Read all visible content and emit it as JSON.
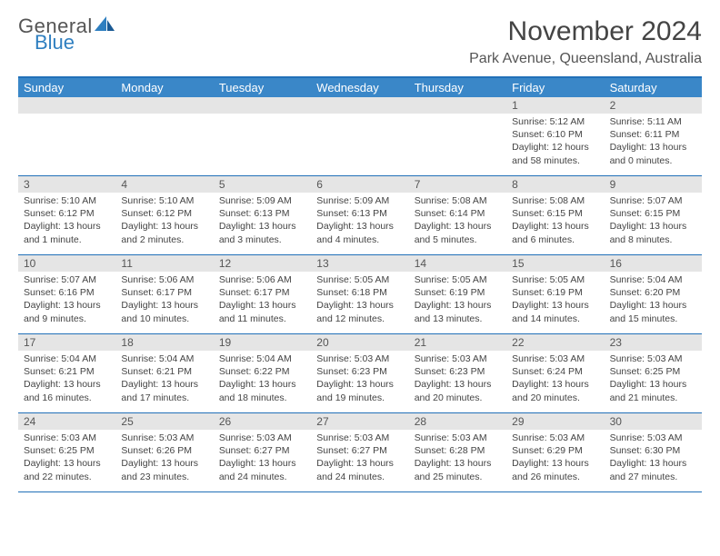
{
  "logo": {
    "general": "General",
    "blue": "Blue"
  },
  "title": "November 2024",
  "location": "Park Avenue, Queensland, Australia",
  "colors": {
    "header_bg": "#3a87c8",
    "border": "#2170b8",
    "daynum_bg": "#e5e5e5",
    "logo_blue": "#2f7fc0"
  },
  "day_names": [
    "Sunday",
    "Monday",
    "Tuesday",
    "Wednesday",
    "Thursday",
    "Friday",
    "Saturday"
  ],
  "weeks": [
    [
      {
        "n": "",
        "sunrise": "",
        "sunset": "",
        "daylight": ""
      },
      {
        "n": "",
        "sunrise": "",
        "sunset": "",
        "daylight": ""
      },
      {
        "n": "",
        "sunrise": "",
        "sunset": "",
        "daylight": ""
      },
      {
        "n": "",
        "sunrise": "",
        "sunset": "",
        "daylight": ""
      },
      {
        "n": "",
        "sunrise": "",
        "sunset": "",
        "daylight": ""
      },
      {
        "n": "1",
        "sunrise": "Sunrise: 5:12 AM",
        "sunset": "Sunset: 6:10 PM",
        "daylight": "Daylight: 12 hours and 58 minutes."
      },
      {
        "n": "2",
        "sunrise": "Sunrise: 5:11 AM",
        "sunset": "Sunset: 6:11 PM",
        "daylight": "Daylight: 13 hours and 0 minutes."
      }
    ],
    [
      {
        "n": "3",
        "sunrise": "Sunrise: 5:10 AM",
        "sunset": "Sunset: 6:12 PM",
        "daylight": "Daylight: 13 hours and 1 minute."
      },
      {
        "n": "4",
        "sunrise": "Sunrise: 5:10 AM",
        "sunset": "Sunset: 6:12 PM",
        "daylight": "Daylight: 13 hours and 2 minutes."
      },
      {
        "n": "5",
        "sunrise": "Sunrise: 5:09 AM",
        "sunset": "Sunset: 6:13 PM",
        "daylight": "Daylight: 13 hours and 3 minutes."
      },
      {
        "n": "6",
        "sunrise": "Sunrise: 5:09 AM",
        "sunset": "Sunset: 6:13 PM",
        "daylight": "Daylight: 13 hours and 4 minutes."
      },
      {
        "n": "7",
        "sunrise": "Sunrise: 5:08 AM",
        "sunset": "Sunset: 6:14 PM",
        "daylight": "Daylight: 13 hours and 5 minutes."
      },
      {
        "n": "8",
        "sunrise": "Sunrise: 5:08 AM",
        "sunset": "Sunset: 6:15 PM",
        "daylight": "Daylight: 13 hours and 6 minutes."
      },
      {
        "n": "9",
        "sunrise": "Sunrise: 5:07 AM",
        "sunset": "Sunset: 6:15 PM",
        "daylight": "Daylight: 13 hours and 8 minutes."
      }
    ],
    [
      {
        "n": "10",
        "sunrise": "Sunrise: 5:07 AM",
        "sunset": "Sunset: 6:16 PM",
        "daylight": "Daylight: 13 hours and 9 minutes."
      },
      {
        "n": "11",
        "sunrise": "Sunrise: 5:06 AM",
        "sunset": "Sunset: 6:17 PM",
        "daylight": "Daylight: 13 hours and 10 minutes."
      },
      {
        "n": "12",
        "sunrise": "Sunrise: 5:06 AM",
        "sunset": "Sunset: 6:17 PM",
        "daylight": "Daylight: 13 hours and 11 minutes."
      },
      {
        "n": "13",
        "sunrise": "Sunrise: 5:05 AM",
        "sunset": "Sunset: 6:18 PM",
        "daylight": "Daylight: 13 hours and 12 minutes."
      },
      {
        "n": "14",
        "sunrise": "Sunrise: 5:05 AM",
        "sunset": "Sunset: 6:19 PM",
        "daylight": "Daylight: 13 hours and 13 minutes."
      },
      {
        "n": "15",
        "sunrise": "Sunrise: 5:05 AM",
        "sunset": "Sunset: 6:19 PM",
        "daylight": "Daylight: 13 hours and 14 minutes."
      },
      {
        "n": "16",
        "sunrise": "Sunrise: 5:04 AM",
        "sunset": "Sunset: 6:20 PM",
        "daylight": "Daylight: 13 hours and 15 minutes."
      }
    ],
    [
      {
        "n": "17",
        "sunrise": "Sunrise: 5:04 AM",
        "sunset": "Sunset: 6:21 PM",
        "daylight": "Daylight: 13 hours and 16 minutes."
      },
      {
        "n": "18",
        "sunrise": "Sunrise: 5:04 AM",
        "sunset": "Sunset: 6:21 PM",
        "daylight": "Daylight: 13 hours and 17 minutes."
      },
      {
        "n": "19",
        "sunrise": "Sunrise: 5:04 AM",
        "sunset": "Sunset: 6:22 PM",
        "daylight": "Daylight: 13 hours and 18 minutes."
      },
      {
        "n": "20",
        "sunrise": "Sunrise: 5:03 AM",
        "sunset": "Sunset: 6:23 PM",
        "daylight": "Daylight: 13 hours and 19 minutes."
      },
      {
        "n": "21",
        "sunrise": "Sunrise: 5:03 AM",
        "sunset": "Sunset: 6:23 PM",
        "daylight": "Daylight: 13 hours and 20 minutes."
      },
      {
        "n": "22",
        "sunrise": "Sunrise: 5:03 AM",
        "sunset": "Sunset: 6:24 PM",
        "daylight": "Daylight: 13 hours and 20 minutes."
      },
      {
        "n": "23",
        "sunrise": "Sunrise: 5:03 AM",
        "sunset": "Sunset: 6:25 PM",
        "daylight": "Daylight: 13 hours and 21 minutes."
      }
    ],
    [
      {
        "n": "24",
        "sunrise": "Sunrise: 5:03 AM",
        "sunset": "Sunset: 6:25 PM",
        "daylight": "Daylight: 13 hours and 22 minutes."
      },
      {
        "n": "25",
        "sunrise": "Sunrise: 5:03 AM",
        "sunset": "Sunset: 6:26 PM",
        "daylight": "Daylight: 13 hours and 23 minutes."
      },
      {
        "n": "26",
        "sunrise": "Sunrise: 5:03 AM",
        "sunset": "Sunset: 6:27 PM",
        "daylight": "Daylight: 13 hours and 24 minutes."
      },
      {
        "n": "27",
        "sunrise": "Sunrise: 5:03 AM",
        "sunset": "Sunset: 6:27 PM",
        "daylight": "Daylight: 13 hours and 24 minutes."
      },
      {
        "n": "28",
        "sunrise": "Sunrise: 5:03 AM",
        "sunset": "Sunset: 6:28 PM",
        "daylight": "Daylight: 13 hours and 25 minutes."
      },
      {
        "n": "29",
        "sunrise": "Sunrise: 5:03 AM",
        "sunset": "Sunset: 6:29 PM",
        "daylight": "Daylight: 13 hours and 26 minutes."
      },
      {
        "n": "30",
        "sunrise": "Sunrise: 5:03 AM",
        "sunset": "Sunset: 6:30 PM",
        "daylight": "Daylight: 13 hours and 27 minutes."
      }
    ]
  ]
}
